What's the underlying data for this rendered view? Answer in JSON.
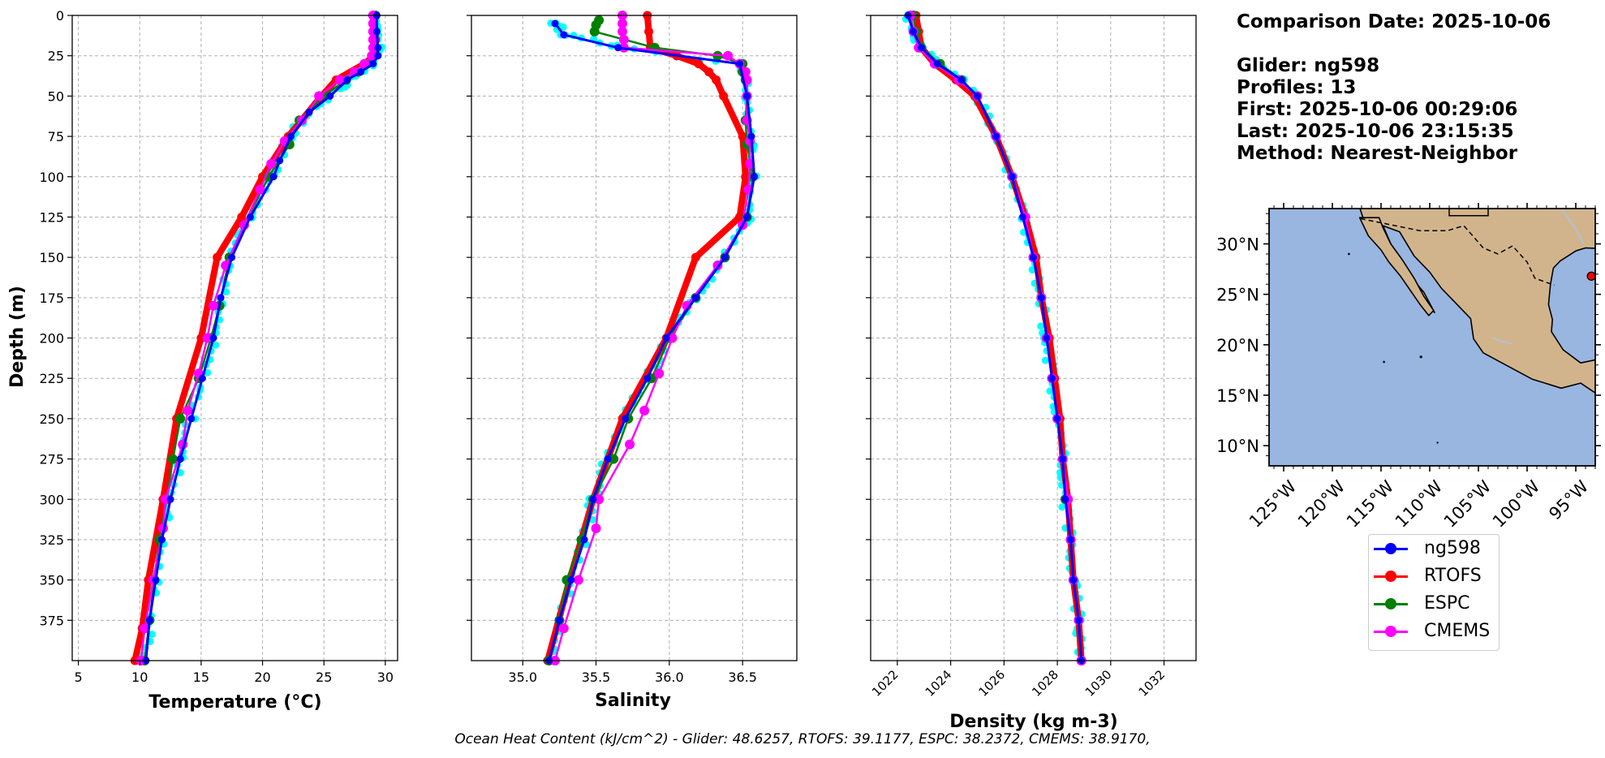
{
  "info": {
    "comparison_date": "Comparison Date: 2025-10-06",
    "glider": "Glider: ng598",
    "profiles": "Profiles: 13",
    "first": "First: 2025-10-06 00:29:06",
    "last": "Last: 2025-10-06 23:15:35",
    "method": "Method: Nearest-Neighbor"
  },
  "footer": "Ocean Heat Content (kJ/cm^2) - Glider: 48.6257,  RTOFS: 39.1177,  ESPC: 38.2372,  CMEMS: 38.9170,",
  "legend": [
    {
      "name": "ng598",
      "color": "#0000ff"
    },
    {
      "name": "RTOFS",
      "color": "#ff0000"
    },
    {
      "name": "ESPC",
      "color": "#008000"
    },
    {
      "name": "CMEMS",
      "color": "#ff00ff"
    }
  ],
  "colors": {
    "glider_raw": "#00ffff",
    "ocean": "#99b6e0",
    "land": "#d2b48c"
  },
  "chart_data": [
    {
      "type": "line",
      "name": "temperature",
      "xlabel": "Temperature (°C)",
      "ylabel": "Depth (m)",
      "xlim": [
        4.5,
        31
      ],
      "ylim": [
        400,
        0
      ],
      "xticks": [
        5,
        10,
        15,
        20,
        25,
        30
      ],
      "yticks": [
        0,
        25,
        50,
        75,
        100,
        125,
        150,
        175,
        200,
        225,
        250,
        275,
        300,
        325,
        350,
        375
      ],
      "grid": true,
      "series": [
        {
          "name": "ng598",
          "depth": [
            0,
            10,
            20,
            25,
            30,
            35,
            40,
            50,
            60,
            75,
            90,
            100,
            125,
            150,
            175,
            200,
            225,
            250,
            275,
            300,
            325,
            350,
            375,
            400
          ],
          "values": [
            29.3,
            29.3,
            29.4,
            29.4,
            29.0,
            28.0,
            26.9,
            25.5,
            23.8,
            22.3,
            21.4,
            20.9,
            19.0,
            17.5,
            16.6,
            16.0,
            15.1,
            14.2,
            13.3,
            12.5,
            11.8,
            11.3,
            10.8,
            10.5
          ]
        },
        {
          "name": "RTOFS",
          "depth": [
            0,
            15,
            25,
            30,
            40,
            50,
            75,
            100,
            125,
            150,
            200,
            250,
            300,
            350,
            380,
            400
          ],
          "values": [
            29.1,
            29.2,
            29.1,
            28.3,
            26.0,
            24.8,
            22.1,
            20.0,
            18.3,
            16.3,
            15.0,
            13.0,
            11.9,
            10.7,
            10.2,
            9.6
          ]
        },
        {
          "name": "ESPC",
          "depth": [
            0,
            10,
            20,
            25,
            30,
            35,
            40,
            50,
            65,
            80,
            100,
            130,
            150,
            180,
            200,
            225,
            250,
            275,
            300,
            325,
            350,
            375,
            400
          ],
          "values": [
            29.2,
            29.2,
            29.2,
            29.0,
            28.5,
            27.8,
            26.8,
            25.0,
            23.0,
            22.2,
            20.5,
            18.5,
            17.3,
            16.5,
            15.8,
            14.8,
            13.3,
            12.7,
            12.2,
            11.6,
            11.2,
            10.8,
            10.4
          ]
        },
        {
          "name": "CMEMS",
          "depth": [
            0,
            5,
            10,
            15,
            20,
            25,
            30,
            35,
            40,
            50,
            65,
            78,
            92,
            108,
            130,
            155,
            180,
            200,
            222,
            245,
            266,
            300,
            318,
            350,
            380,
            400
          ],
          "values": [
            29.0,
            29.0,
            29.0,
            29.0,
            29.0,
            28.9,
            28.3,
            27.5,
            26.3,
            24.6,
            23.2,
            21.8,
            20.7,
            19.8,
            18.5,
            17.0,
            16.0,
            15.5,
            14.8,
            13.9,
            13.5,
            12.1,
            11.9,
            11.1,
            10.4,
            10.1
          ]
        }
      ]
    },
    {
      "type": "line",
      "name": "salinity",
      "xlabel": "Salinity",
      "xlim": [
        34.65,
        36.87
      ],
      "ylim": [
        400,
        0
      ],
      "xticks": [
        35.0,
        35.5,
        36.0,
        36.5
      ],
      "yticks": [
        0,
        25,
        50,
        75,
        100,
        125,
        150,
        175,
        200,
        225,
        250,
        275,
        300,
        325,
        350,
        375
      ],
      "grid": true,
      "series": [
        {
          "name": "ng598",
          "depth": [
            5,
            12,
            20,
            30,
            50,
            75,
            100,
            125,
            150,
            175,
            200,
            225,
            250,
            275,
            300,
            325,
            350,
            375,
            400
          ],
          "values": [
            35.22,
            35.28,
            35.65,
            36.48,
            36.53,
            36.56,
            36.58,
            36.53,
            36.38,
            36.18,
            35.98,
            35.85,
            35.7,
            35.58,
            35.48,
            35.42,
            35.33,
            35.25,
            35.18
          ]
        },
        {
          "name": "RTOFS",
          "depth": [
            0,
            10,
            20,
            25,
            30,
            35,
            40,
            50,
            75,
            100,
            125,
            150,
            200,
            250,
            300,
            350,
            400
          ],
          "values": [
            35.85,
            35.86,
            35.87,
            36.05,
            36.2,
            36.27,
            36.32,
            36.37,
            36.5,
            36.52,
            36.48,
            36.18,
            35.98,
            35.68,
            35.48,
            35.32,
            35.17
          ]
        },
        {
          "name": "ESPC",
          "depth": [
            3,
            6,
            10,
            20,
            25,
            30,
            35,
            40,
            50,
            65,
            80,
            100,
            125,
            150,
            175,
            200,
            225,
            250,
            275,
            300,
            325,
            350,
            375,
            400
          ],
          "values": [
            35.52,
            35.5,
            35.49,
            35.9,
            36.33,
            36.5,
            36.5,
            36.52,
            36.53,
            36.52,
            36.53,
            36.57,
            36.53,
            36.38,
            36.18,
            36.0,
            35.88,
            35.72,
            35.62,
            35.48,
            35.4,
            35.3,
            35.25,
            35.18
          ]
        },
        {
          "name": "CMEMS",
          "depth": [
            0,
            5,
            10,
            15,
            20,
            25,
            30,
            35,
            40,
            50,
            65,
            78,
            92,
            108,
            130,
            155,
            180,
            200,
            222,
            245,
            266,
            300,
            318,
            350,
            380,
            400
          ],
          "values": [
            35.68,
            35.68,
            35.68,
            35.69,
            35.69,
            36.4,
            36.48,
            36.52,
            36.53,
            36.53,
            36.53,
            36.55,
            36.55,
            36.54,
            36.5,
            36.33,
            36.12,
            36.02,
            35.93,
            35.83,
            35.73,
            35.52,
            35.5,
            35.38,
            35.28,
            35.22
          ]
        }
      ]
    },
    {
      "type": "line",
      "name": "density",
      "xlabel": "Density (kg m-3)",
      "xlim": [
        1021.0,
        1033.2
      ],
      "ylim": [
        400,
        0
      ],
      "xticks": [
        1022,
        1024,
        1026,
        1028,
        1030,
        1032
      ],
      "yticks": [
        0,
        25,
        50,
        75,
        100,
        125,
        150,
        175,
        200,
        225,
        250,
        275,
        300,
        325,
        350,
        375
      ],
      "grid": true,
      "series": [
        {
          "name": "ng598",
          "depth": [
            0,
            10,
            20,
            30,
            40,
            50,
            75,
            100,
            125,
            150,
            175,
            200,
            225,
            250,
            275,
            300,
            325,
            350,
            375,
            400
          ],
          "values": [
            1022.4,
            1022.6,
            1022.9,
            1023.5,
            1024.4,
            1025.0,
            1025.7,
            1026.3,
            1026.7,
            1027.1,
            1027.4,
            1027.6,
            1027.8,
            1028.0,
            1028.2,
            1028.3,
            1028.5,
            1028.6,
            1028.8,
            1028.9
          ]
        },
        {
          "name": "RTOFS",
          "depth": [
            0,
            10,
            20,
            30,
            40,
            50,
            75,
            100,
            125,
            150,
            175,
            200,
            225,
            250,
            275,
            300,
            325,
            350,
            375,
            400
          ],
          "values": [
            1022.7,
            1022.8,
            1022.9,
            1023.4,
            1024.2,
            1024.9,
            1025.7,
            1026.3,
            1026.8,
            1027.2,
            1027.4,
            1027.7,
            1027.9,
            1028.1,
            1028.2,
            1028.4,
            1028.5,
            1028.6,
            1028.8,
            1028.9
          ]
        },
        {
          "name": "ESPC",
          "depth": [
            0,
            10,
            20,
            30,
            40,
            50,
            75,
            100,
            125,
            150,
            175,
            200,
            225,
            250,
            275,
            300,
            325,
            350,
            375,
            400
          ],
          "values": [
            1022.6,
            1022.7,
            1022.9,
            1023.6,
            1024.4,
            1025.0,
            1025.7,
            1026.3,
            1026.8,
            1027.1,
            1027.4,
            1027.6,
            1027.8,
            1028.0,
            1028.2,
            1028.3,
            1028.5,
            1028.6,
            1028.8,
            1028.9
          ]
        },
        {
          "name": "CMEMS",
          "depth": [
            0,
            10,
            20,
            30,
            40,
            50,
            75,
            100,
            125,
            150,
            175,
            200,
            225,
            250,
            275,
            300,
            325,
            350,
            375,
            400
          ],
          "values": [
            1022.5,
            1022.6,
            1022.8,
            1023.4,
            1024.3,
            1025.0,
            1025.7,
            1026.3,
            1026.8,
            1027.1,
            1027.4,
            1027.6,
            1027.8,
            1028.0,
            1028.2,
            1028.4,
            1028.5,
            1028.6,
            1028.8,
            1028.9
          ]
        }
      ]
    },
    {
      "type": "map",
      "name": "glider_location_map",
      "lon_ticks": [
        "125°W",
        "120°W",
        "115°W",
        "110°W",
        "105°W",
        "100°W",
        "95°W"
      ],
      "lat_ticks": [
        "30°N",
        "25°N",
        "20°N",
        "15°N",
        "10°N"
      ],
      "lon_range": [
        -126.5,
        -93.0
      ],
      "lat_range": [
        8.0,
        33.5
      ],
      "glider_position": {
        "lon": -93.4,
        "lat": 26.8
      }
    }
  ]
}
